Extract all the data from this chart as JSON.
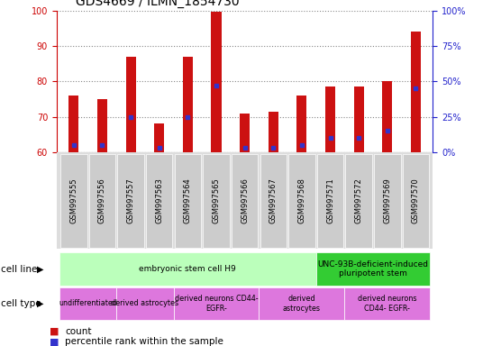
{
  "title": "GDS4669 / ILMN_1854730",
  "samples": [
    "GSM997555",
    "GSM997556",
    "GSM997557",
    "GSM997563",
    "GSM997564",
    "GSM997565",
    "GSM997566",
    "GSM997567",
    "GSM997568",
    "GSM997571",
    "GSM997572",
    "GSM997569",
    "GSM997570"
  ],
  "count_values": [
    76.0,
    75.0,
    87.0,
    68.0,
    87.0,
    99.5,
    71.0,
    71.5,
    76.0,
    78.5,
    78.5,
    80.0,
    94.0
  ],
  "percentile_values": [
    5.0,
    5.0,
    25.0,
    3.0,
    25.0,
    47.0,
    3.0,
    3.0,
    5.0,
    10.0,
    10.0,
    15.0,
    45.0
  ],
  "ylim_left": [
    60,
    100
  ],
  "ylim_right": [
    0,
    100
  ],
  "yticks_left": [
    60,
    70,
    80,
    90,
    100
  ],
  "yticks_right": [
    0,
    25,
    50,
    75,
    100
  ],
  "bar_color": "#cc1111",
  "dot_color": "#3333cc",
  "bar_bottom": 60,
  "bar_width": 0.35,
  "cell_line_groups": [
    {
      "label": "embryonic stem cell H9",
      "start": 0,
      "end": 9,
      "color": "#bbffbb"
    },
    {
      "label": "UNC-93B-deficient-induced\npluripotent stem",
      "start": 9,
      "end": 13,
      "color": "#33cc33"
    }
  ],
  "cell_type_groups": [
    {
      "label": "undifferentiated",
      "start": 0,
      "end": 2,
      "color": "#dd77dd"
    },
    {
      "label": "derived astrocytes",
      "start": 2,
      "end": 4,
      "color": "#dd77dd"
    },
    {
      "label": "derived neurons CD44-\nEGFR-",
      "start": 4,
      "end": 7,
      "color": "#dd77dd"
    },
    {
      "label": "derived\nastrocytes",
      "start": 7,
      "end": 10,
      "color": "#dd77dd"
    },
    {
      "label": "derived neurons\nCD44- EGFR-",
      "start": 10,
      "end": 13,
      "color": "#dd77dd"
    }
  ],
  "bg_color": "#ffffff",
  "plot_bg_color": "#ffffff",
  "grid_color": "#888888",
  "left_axis_color": "#cc0000",
  "right_axis_color": "#2222cc",
  "xtick_bg": "#cccccc",
  "title_fontsize": 10,
  "tick_label_fontsize": 7,
  "annot_fontsize": 7,
  "legend_fontsize": 8
}
